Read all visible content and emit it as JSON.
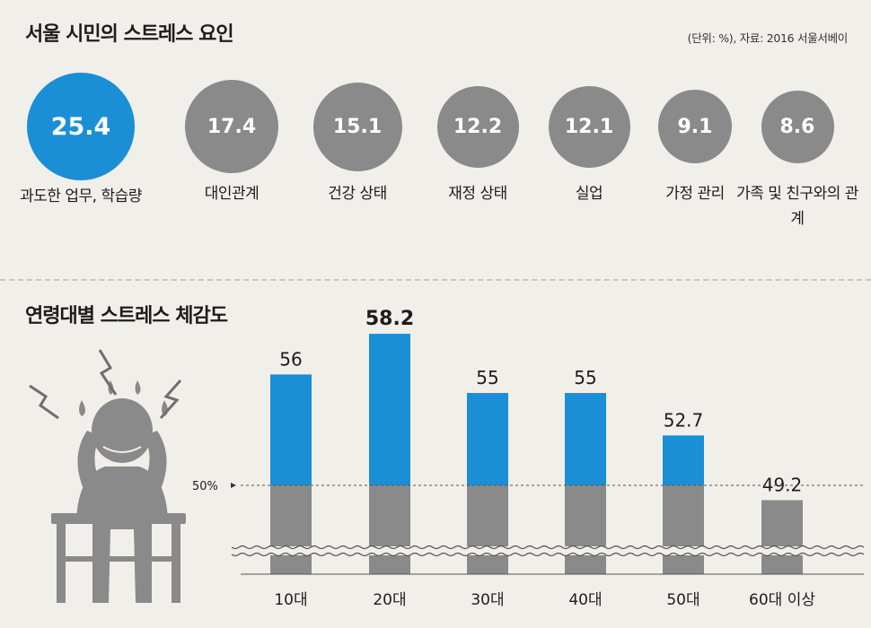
{
  "header": {
    "title": "서울 시민의 스트레스 요인",
    "source": "(단위: %), 자료: 2016 서울서베이"
  },
  "stress_factors": [
    {
      "value": "25.4",
      "label": "과도한 업무, 학습량",
      "highlight": true
    },
    {
      "value": "17.4",
      "label": "대인관계",
      "highlight": false
    },
    {
      "value": "15.1",
      "label": "건강 상태",
      "highlight": false
    },
    {
      "value": "12.2",
      "label": "재정 상태",
      "highlight": false
    },
    {
      "value": "12.1",
      "label": "실업",
      "highlight": false
    },
    {
      "value": "9.1",
      "label": "가정 관리",
      "highlight": false
    },
    {
      "value": "8.6",
      "label": "가족 및 친구와의 관계",
      "highlight": false
    }
  ],
  "colors": {
    "accent": "#1a8fd6",
    "gray": "#8a8a8a",
    "background": "#f1efe9"
  },
  "chart_data": {
    "type": "bar",
    "title": "연령대별 스트레스 체감도",
    "categories": [
      "10대",
      "20대",
      "30대",
      "40대",
      "50대",
      "60대 이상"
    ],
    "values": [
      56,
      58.2,
      55,
      55,
      52.7,
      49.2
    ],
    "value_labels": [
      "56",
      "58.2",
      "55",
      "55",
      "52.7",
      "49.2"
    ],
    "reference_line": {
      "value": 50,
      "label": "50%"
    },
    "axis_break": true,
    "ylim": [
      48,
      59
    ]
  },
  "illustration": {
    "icon": "stressed-person-icon"
  }
}
